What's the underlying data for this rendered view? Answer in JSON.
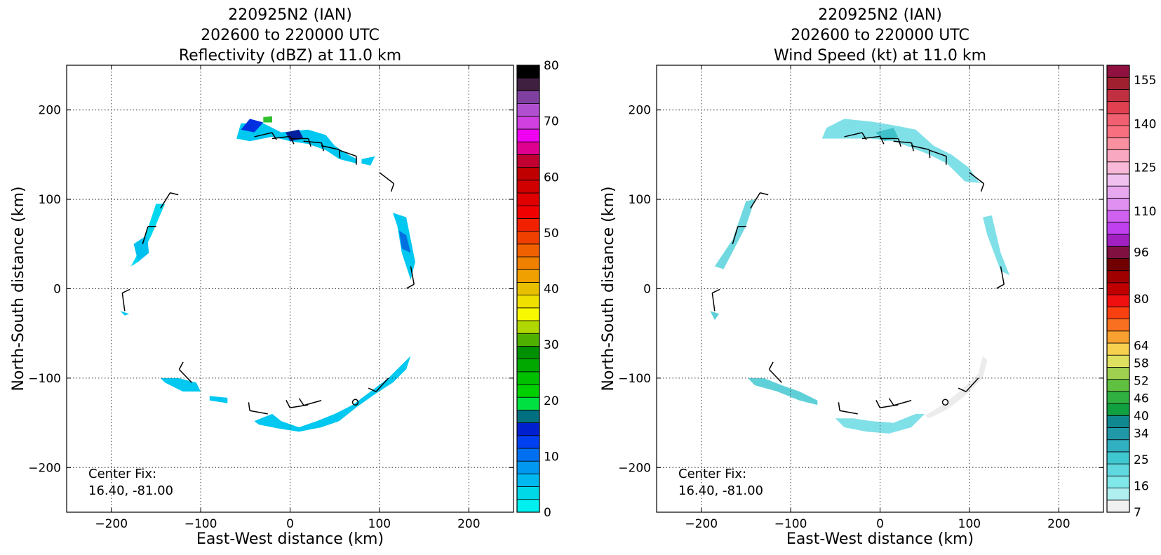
{
  "chart_data": [
    {
      "type": "heatmap",
      "title": [
        "220925N2 (IAN)",
        "202600 to 220000 UTC",
        "Reflectivity (dBZ) at 11.0 km"
      ],
      "xlabel": "East-West distance (km)",
      "ylabel": "North-South distance (km)",
      "xlim": [
        -250,
        250
      ],
      "ylim": [
        -250,
        250
      ],
      "xticks": [
        -200,
        -100,
        0,
        100,
        200
      ],
      "yticks": [
        -200,
        -100,
        0,
        100,
        200
      ],
      "grid": true,
      "annotation": [
        "Center Fix:",
        "16.40, -81.00"
      ],
      "colorbar": {
        "range": [
          0,
          80
        ],
        "ticks": [
          0,
          10,
          20,
          30,
          40,
          50,
          60,
          70,
          80
        ],
        "colors": [
          "#00f0f0",
          "#00d8e8",
          "#00b8f0",
          "#0098f0",
          "#0070f0",
          "#0040f0",
          "#0020d0",
          "#007080",
          "#00e040",
          "#00d000",
          "#00c000",
          "#00a800",
          "#009000",
          "#50b000",
          "#b0d800",
          "#f8f800",
          "#f0e000",
          "#e8c000",
          "#f0a000",
          "#f08000",
          "#f06000",
          "#f04000",
          "#f02000",
          "#f00000",
          "#e00000",
          "#d00000",
          "#c00000",
          "#c00030",
          "#e00090",
          "#f000f0",
          "#d040e0",
          "#b050d0",
          "#8040a0",
          "#402040",
          "#000000"
        ]
      },
      "barbs": [
        [
          -40,
          170
        ],
        [
          -20,
          168
        ],
        [
          0,
          168
        ],
        [
          15,
          165
        ],
        [
          35,
          160
        ],
        [
          55,
          155
        ],
        [
          100,
          130
        ],
        [
          -145,
          90
        ],
        [
          -165,
          50
        ],
        [
          135,
          25
        ],
        [
          -185,
          -25
        ],
        [
          -110,
          -105
        ],
        [
          -25,
          -140
        ],
        [
          20,
          -130
        ],
        [
          35,
          -125
        ],
        [
          110,
          -100
        ]
      ],
      "center": [
        73,
        -127
      ],
      "regions": [
        {
          "pts": [
            [
              -60,
              168
            ],
            [
              -55,
              185
            ],
            [
              -30,
              185
            ],
            [
              -10,
              175
            ],
            [
              20,
              178
            ],
            [
              40,
              172
            ],
            [
              50,
              160
            ],
            [
              65,
              150
            ],
            [
              75,
              145
            ],
            [
              75,
              140
            ],
            [
              55,
              145
            ],
            [
              40,
              155
            ],
            [
              20,
              162
            ],
            [
              0,
              165
            ],
            [
              -20,
              170
            ],
            [
              -45,
              165
            ]
          ],
          "c": "#00c8f0"
        },
        {
          "pts": [
            [
              -55,
              178
            ],
            [
              -45,
              190
            ],
            [
              -30,
              186
            ],
            [
              -40,
              175
            ]
          ],
          "c": "#0030e0"
        },
        {
          "pts": [
            [
              -5,
              175
            ],
            [
              10,
              178
            ],
            [
              15,
              168
            ],
            [
              0,
              165
            ]
          ],
          "c": "#0020a0"
        },
        {
          "pts": [
            [
              -30,
              192
            ],
            [
              -20,
              193
            ],
            [
              -20,
              186
            ],
            [
              -30,
              186
            ]
          ],
          "c": "#30c030"
        },
        {
          "pts": [
            [
              80,
              145
            ],
            [
              95,
              148
            ],
            [
              90,
              138
            ],
            [
              80,
              140
            ]
          ],
          "c": "#00c8f0"
        },
        {
          "pts": [
            [
              -150,
              95
            ],
            [
              -140,
              95
            ],
            [
              -155,
              60
            ],
            [
              -170,
              30
            ],
            [
              -178,
              25
            ],
            [
              -165,
              50
            ]
          ],
          "c": "#00d8f0"
        },
        {
          "pts": [
            [
              -175,
              50
            ],
            [
              -160,
              60
            ],
            [
              -158,
              40
            ],
            [
              -170,
              30
            ]
          ],
          "c": "#00c0f0"
        },
        {
          "pts": [
            [
              115,
              85
            ],
            [
              130,
              80
            ],
            [
              140,
              30
            ],
            [
              135,
              10
            ],
            [
              125,
              40
            ],
            [
              120,
              70
            ]
          ],
          "c": "#00c8f0"
        },
        {
          "pts": [
            [
              122,
              65
            ],
            [
              130,
              60
            ],
            [
              135,
              40
            ],
            [
              125,
              45
            ]
          ],
          "c": "#0070e0"
        },
        {
          "pts": [
            [
              -190,
              -25
            ],
            [
              -185,
              -30
            ],
            [
              -180,
              -28
            ]
          ],
          "c": "#00c8f0"
        },
        {
          "pts": [
            [
              -145,
              -100
            ],
            [
              -125,
              -100
            ],
            [
              -105,
              -105
            ],
            [
              -100,
              -115
            ],
            [
              -120,
              -115
            ],
            [
              -140,
              -105
            ]
          ],
          "c": "#00c8f0"
        },
        {
          "pts": [
            [
              -90,
              -120
            ],
            [
              -70,
              -122
            ],
            [
              -70,
              -128
            ],
            [
              -90,
              -125
            ]
          ],
          "c": "#00c8f0"
        },
        {
          "pts": [
            [
              -40,
              -148
            ],
            [
              -20,
              -140
            ],
            [
              -10,
              -148
            ],
            [
              10,
              -155
            ],
            [
              30,
              -148
            ],
            [
              50,
              -140
            ],
            [
              70,
              -130
            ],
            [
              90,
              -115
            ],
            [
              110,
              -100
            ],
            [
              125,
              -85
            ],
            [
              135,
              -75
            ],
            [
              130,
              -90
            ],
            [
              115,
              -105
            ],
            [
              95,
              -118
            ],
            [
              75,
              -132
            ],
            [
              55,
              -148
            ],
            [
              35,
              -155
            ],
            [
              10,
              -160
            ],
            [
              -15,
              -156
            ],
            [
              -35,
              -152
            ]
          ],
          "c": "#00c8f0"
        }
      ]
    },
    {
      "type": "heatmap",
      "title": [
        "220925N2 (IAN)",
        "202600 to 220000 UTC",
        "Wind Speed (kt) at 11.0 km"
      ],
      "xlabel": "East-West distance (km)",
      "ylabel": "North-South distance (km)",
      "xlim": [
        -250,
        250
      ],
      "ylim": [
        -250,
        250
      ],
      "xticks": [
        -200,
        -100,
        0,
        100,
        200
      ],
      "yticks": [
        -200,
        -100,
        0,
        100,
        200
      ],
      "grid": true,
      "annotation": [
        "Center Fix:",
        "16.40, -81.00"
      ],
      "colorbar": {
        "range": [
          7,
          160
        ],
        "ticks": [
          7,
          16,
          25,
          34,
          40,
          46,
          52,
          58,
          64,
          80,
          96,
          110,
          125,
          140,
          155
        ],
        "colors": [
          "#f0f0f0",
          "#b0f0f0",
          "#80e8e8",
          "#60d8e0",
          "#40c8d0",
          "#30b0c0",
          "#2098a8",
          "#108890",
          "#10a040",
          "#30b040",
          "#60c040",
          "#a0d050",
          "#e0e060",
          "#f8d050",
          "#f8a030",
          "#f87020",
          "#f84010",
          "#f01010",
          "#c00000",
          "#a00000",
          "#700000",
          "#801040",
          "#a020c0",
          "#c040f0",
          "#d060f0",
          "#e090f0",
          "#e8a8f0",
          "#f0c0f0",
          "#f8b8d8",
          "#f8a8c0",
          "#f890a0",
          "#f87080",
          "#f06070",
          "#e04050",
          "#c03040",
          "#a02030",
          "#901040"
        ]
      },
      "barbs": [
        [
          -40,
          170
        ],
        [
          -20,
          168
        ],
        [
          0,
          168
        ],
        [
          15,
          165
        ],
        [
          35,
          160
        ],
        [
          55,
          155
        ],
        [
          100,
          130
        ],
        [
          -145,
          90
        ],
        [
          -165,
          50
        ],
        [
          135,
          25
        ],
        [
          -185,
          -25
        ],
        [
          -110,
          -105
        ],
        [
          -25,
          -140
        ],
        [
          20,
          -130
        ],
        [
          35,
          -125
        ],
        [
          110,
          -100
        ]
      ],
      "center": [
        73,
        -127
      ],
      "regions": [
        {
          "pts": [
            [
              -65,
              168
            ],
            [
              -60,
              180
            ],
            [
              -40,
              190
            ],
            [
              -10,
              187
            ],
            [
              20,
              182
            ],
            [
              40,
              178
            ],
            [
              60,
              160
            ],
            [
              80,
              150
            ],
            [
              100,
              135
            ],
            [
              110,
              120
            ],
            [
              115,
              118
            ],
            [
              95,
              120
            ],
            [
              75,
              140
            ],
            [
              55,
              150
            ],
            [
              35,
              158
            ],
            [
              15,
              165
            ],
            [
              -10,
              168
            ],
            [
              -40,
              168
            ]
          ],
          "c": "#80e0e8"
        },
        {
          "pts": [
            [
              -5,
              175
            ],
            [
              15,
              180
            ],
            [
              20,
              170
            ],
            [
              5,
              165
            ]
          ],
          "c": "#40c0c8"
        },
        {
          "pts": [
            [
              -150,
              98
            ],
            [
              -140,
              100
            ],
            [
              -150,
              70
            ],
            [
              -175,
              22
            ],
            [
              -185,
              25
            ],
            [
              -165,
              55
            ]
          ],
          "c": "#70d8e0"
        },
        {
          "pts": [
            [
              115,
              80
            ],
            [
              125,
              82
            ],
            [
              135,
              40
            ],
            [
              145,
              15
            ],
            [
              135,
              20
            ],
            [
              120,
              60
            ]
          ],
          "c": "#80e0e8"
        },
        {
          "pts": [
            [
              -190,
              -25
            ],
            [
              -185,
              -35
            ],
            [
              -180,
              -28
            ]
          ],
          "c": "#60d0d8"
        },
        {
          "pts": [
            [
              -148,
              -100
            ],
            [
              -130,
              -100
            ],
            [
              -110,
              -108
            ],
            [
              -90,
              -115
            ],
            [
              -70,
              -125
            ],
            [
              -70,
              -130
            ],
            [
              -90,
              -125
            ],
            [
              -115,
              -115
            ],
            [
              -140,
              -108
            ]
          ],
          "c": "#60d0d8"
        },
        {
          "pts": [
            [
              -50,
              -145
            ],
            [
              -30,
              -145
            ],
            [
              -10,
              -148
            ],
            [
              15,
              -150
            ],
            [
              40,
              -140
            ],
            [
              50,
              -140
            ],
            [
              35,
              -155
            ],
            [
              10,
              -162
            ],
            [
              -15,
              -160
            ],
            [
              -40,
              -155
            ]
          ],
          "c": "#80e0e8"
        },
        {
          "pts": [
            [
              50,
              -142
            ],
            [
              70,
              -130
            ],
            [
              95,
              -110
            ],
            [
              110,
              -95
            ],
            [
              115,
              -75
            ],
            [
              120,
              -80
            ],
            [
              115,
              -100
            ],
            [
              95,
              -120
            ],
            [
              75,
              -135
            ],
            [
              55,
              -145
            ]
          ],
          "c": "#ececec"
        }
      ]
    }
  ]
}
